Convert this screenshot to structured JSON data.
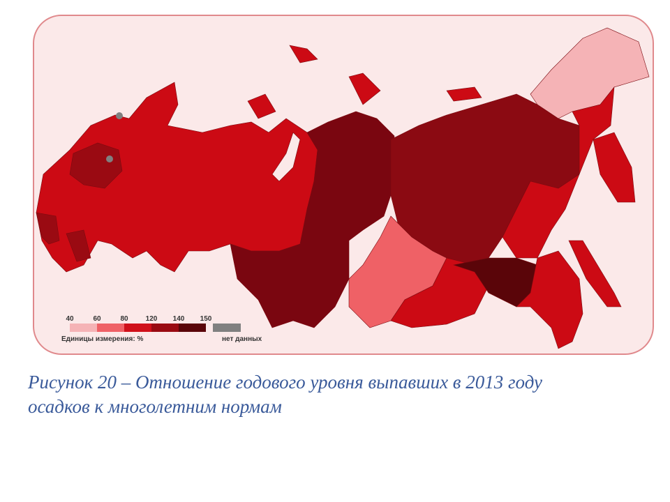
{
  "legend": {
    "ticks": [
      40,
      60,
      80,
      120,
      140,
      150
    ],
    "colors": [
      "#f5b3b6",
      "#ef6166",
      "#d0101a",
      "#9a0a12",
      "#5a0509"
    ],
    "units": "Единицы измерения: %",
    "no_data": "нет данных",
    "no_data_color": "#808080"
  },
  "caption": [
    "Рисунок 20 – Отношение годового уровня выпавших в 2013 году",
    "осадков к многолетним нормам"
  ]
}
